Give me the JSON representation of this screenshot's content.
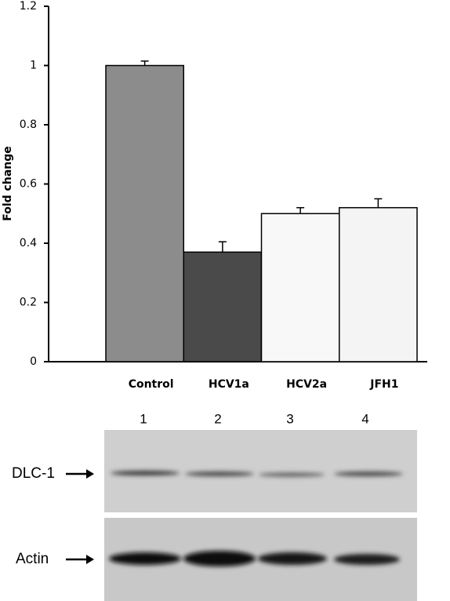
{
  "chart_data": {
    "type": "bar",
    "ylabel": "Fold change",
    "categories": [
      "Control",
      "HCV1a",
      "HCV2a",
      "JFH1"
    ],
    "values": [
      1.0,
      0.37,
      0.5,
      0.52
    ],
    "errors": [
      0.015,
      0.035,
      0.02,
      0.03
    ],
    "colors": [
      "#8c8c8c",
      "#4a4a4a",
      "#f8f8f8",
      "#f4f4f4"
    ],
    "ylim": [
      0,
      1.2
    ],
    "yticks": [
      0,
      0.2,
      0.4,
      0.6,
      0.8,
      1,
      1.2
    ]
  },
  "blot": {
    "lanes": [
      "1",
      "2",
      "3",
      "4"
    ],
    "labels": [
      "DLC-1",
      "Actin"
    ]
  }
}
